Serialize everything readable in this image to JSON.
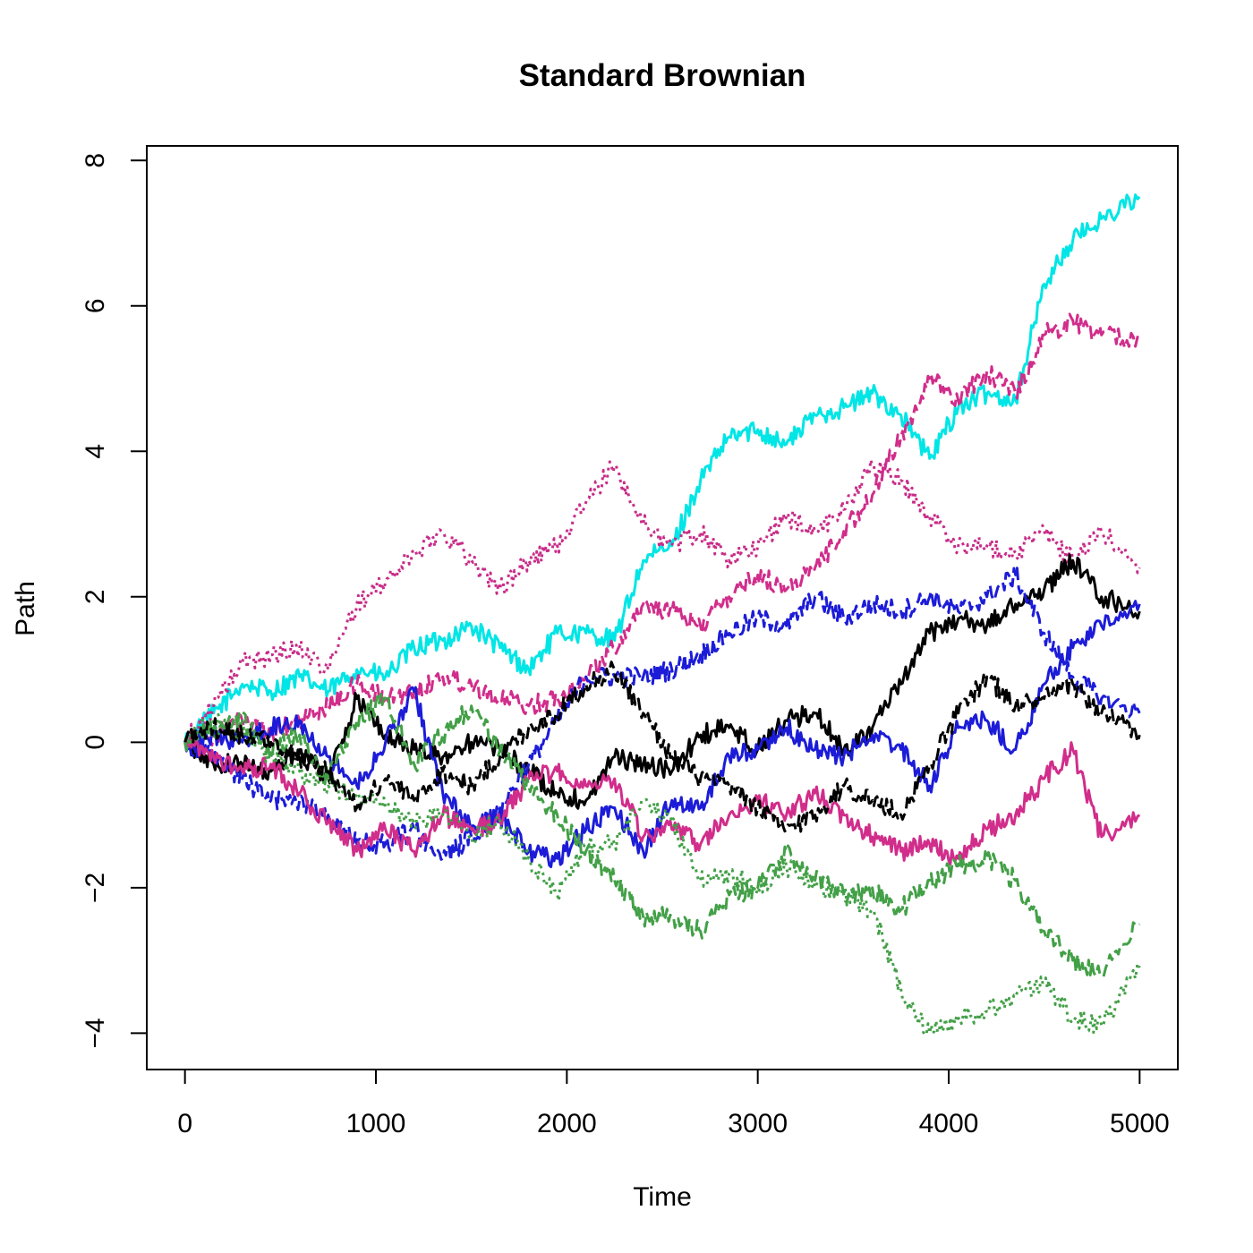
{
  "chart_data": {
    "type": "line",
    "title": "Standard Brownian",
    "xlabel": "Time",
    "ylabel": "Path",
    "xlim": [
      -200,
      5200
    ],
    "ylim": [
      -4.5,
      8.2
    ],
    "x_ticks": [
      0,
      1000,
      2000,
      3000,
      4000,
      5000
    ],
    "y_ticks": [
      -4,
      -2,
      0,
      2,
      4,
      6,
      8
    ],
    "x_tick_labels": [
      "0",
      "1000",
      "2000",
      "3000",
      "4000",
      "5000"
    ],
    "y_tick_labels": [
      "−4",
      "−2",
      "0",
      "2",
      "4",
      "6",
      "8"
    ],
    "grid": false,
    "legend": "none",
    "series": [
      {
        "color": "#00e5e5",
        "dash": "solid",
        "x": [
          0,
          150,
          300,
          450,
          600,
          750,
          900,
          1050,
          1200,
          1350,
          1500,
          1650,
          1800,
          1950,
          2100,
          2250,
          2400,
          2550,
          2700,
          2850,
          3000,
          3150,
          3300,
          3450,
          3600,
          3750,
          3900,
          4050,
          4200,
          4350,
          4500,
          4650,
          4800,
          5000
        ],
        "values": [
          0,
          0.4,
          0.8,
          0.7,
          0.9,
          0.7,
          1.0,
          0.9,
          1.3,
          1.4,
          1.6,
          1.3,
          1.0,
          1.5,
          1.5,
          1.4,
          2.5,
          2.7,
          3.6,
          4.2,
          4.3,
          4.1,
          4.5,
          4.6,
          4.8,
          4.5,
          3.9,
          4.6,
          4.8,
          4.7,
          6.3,
          6.9,
          7.2,
          7.5
        ]
      },
      {
        "color": "#d12d8b",
        "dash": "dashed",
        "x": [
          0,
          150,
          300,
          450,
          600,
          750,
          900,
          1050,
          1200,
          1350,
          1500,
          1650,
          1800,
          1950,
          2100,
          2250,
          2400,
          2550,
          2700,
          2850,
          3000,
          3150,
          3300,
          3450,
          3600,
          3750,
          3900,
          4050,
          4200,
          4350,
          4500,
          4650,
          4800,
          5000
        ],
        "values": [
          0,
          0.1,
          0.3,
          0.1,
          0.3,
          0.5,
          0.8,
          0.6,
          0.7,
          0.9,
          0.8,
          0.6,
          0.5,
          0.6,
          0.9,
          1.3,
          1.9,
          1.8,
          1.6,
          2.0,
          2.3,
          2.1,
          2.4,
          2.9,
          3.4,
          4.2,
          5.0,
          4.7,
          5.1,
          4.8,
          5.6,
          5.8,
          5.6,
          5.5
        ]
      },
      {
        "color": "#c72c88",
        "dash": "dotted",
        "x": [
          0,
          150,
          300,
          450,
          600,
          750,
          900,
          1050,
          1200,
          1350,
          1500,
          1650,
          1800,
          1950,
          2100,
          2250,
          2400,
          2550,
          2700,
          2850,
          3000,
          3150,
          3300,
          3450,
          3600,
          3750,
          3900,
          4050,
          4200,
          4350,
          4500,
          4650,
          4800,
          5000
        ],
        "values": [
          0,
          0.5,
          1.1,
          1.2,
          1.3,
          1.0,
          1.9,
          2.2,
          2.6,
          2.9,
          2.5,
          2.1,
          2.5,
          2.7,
          3.3,
          3.8,
          3.0,
          2.7,
          2.9,
          2.5,
          2.7,
          3.1,
          2.9,
          3.2,
          3.8,
          3.6,
          3.1,
          2.7,
          2.7,
          2.6,
          2.9,
          2.5,
          2.9,
          2.4
        ]
      },
      {
        "color": "#000000",
        "dash": "solid",
        "x": [
          0,
          150,
          300,
          450,
          600,
          750,
          900,
          1050,
          1200,
          1350,
          1500,
          1650,
          1800,
          1950,
          2100,
          2250,
          2400,
          2550,
          2700,
          2850,
          3000,
          3150,
          3300,
          3450,
          3600,
          3750,
          3900,
          4050,
          4200,
          4350,
          4500,
          4650,
          4800,
          5000
        ],
        "values": [
          0,
          -0.3,
          -0.3,
          -0.4,
          -0.1,
          -0.5,
          0.6,
          0.1,
          -0.1,
          -0.2,
          0.0,
          -0.1,
          -0.4,
          -0.7,
          -0.8,
          -0.2,
          -0.3,
          -0.4,
          0.1,
          0.2,
          -0.1,
          0.3,
          0.4,
          -0.1,
          0.2,
          0.8,
          1.5,
          1.7,
          1.6,
          1.9,
          2.1,
          2.5,
          2.0,
          1.8
        ]
      },
      {
        "color": "#1c1cd8",
        "dash": "dashed",
        "x": [
          0,
          150,
          300,
          450,
          600,
          750,
          900,
          1050,
          1200,
          1350,
          1500,
          1650,
          1800,
          1950,
          2100,
          2250,
          2400,
          2550,
          2700,
          2850,
          3000,
          3150,
          3300,
          3450,
          3600,
          3750,
          3900,
          4050,
          4200,
          4350,
          4500,
          4650,
          4800,
          5000
        ],
        "values": [
          0,
          -0.2,
          -0.5,
          -0.8,
          -0.8,
          -1.0,
          -1.4,
          -1.4,
          -1.2,
          -1.6,
          -1.3,
          -0.9,
          -0.3,
          0.3,
          0.9,
          0.9,
          0.9,
          1.0,
          1.2,
          1.5,
          1.7,
          1.6,
          2.0,
          1.7,
          1.9,
          1.8,
          2.0,
          1.8,
          2.0,
          2.3,
          1.5,
          0.9,
          0.6,
          0.4
        ]
      },
      {
        "color": "#1c1cd8",
        "dash": "solid",
        "x": [
          0,
          150,
          300,
          450,
          600,
          750,
          900,
          1050,
          1200,
          1350,
          1500,
          1650,
          1800,
          1950,
          2100,
          2250,
          2400,
          2550,
          2700,
          2850,
          3000,
          3150,
          3300,
          3450,
          3600,
          3750,
          3900,
          4050,
          4200,
          4350,
          4500,
          4650,
          4800,
          5000
        ],
        "values": [
          0,
          0.1,
          0.0,
          0.2,
          0.3,
          -0.2,
          -0.6,
          0.0,
          0.7,
          -0.7,
          -1.2,
          -1.0,
          -1.5,
          -1.6,
          -1.2,
          -0.9,
          -1.5,
          -0.8,
          -0.9,
          -0.2,
          -0.1,
          0.2,
          -0.1,
          -0.2,
          0.1,
          -0.1,
          -0.6,
          0.2,
          0.3,
          -0.1,
          0.8,
          1.3,
          1.6,
          1.9
        ]
      },
      {
        "color": "#d12d8b",
        "dash": "solid",
        "x": [
          0,
          150,
          300,
          450,
          600,
          750,
          900,
          1050,
          1200,
          1350,
          1500,
          1650,
          1800,
          1950,
          2100,
          2250,
          2400,
          2550,
          2700,
          2850,
          3000,
          3150,
          3300,
          3450,
          3600,
          3750,
          3900,
          4050,
          4200,
          4350,
          4500,
          4650,
          4800,
          5000
        ],
        "values": [
          0,
          -0.2,
          -0.4,
          -0.3,
          -0.7,
          -1.1,
          -1.5,
          -1.2,
          -1.5,
          -1.0,
          -1.2,
          -1.1,
          -0.5,
          -0.4,
          -0.6,
          -0.5,
          -1.3,
          -1.2,
          -1.4,
          -1.0,
          -0.8,
          -1.0,
          -0.7,
          -1.0,
          -1.3,
          -1.5,
          -1.4,
          -1.6,
          -1.2,
          -1.0,
          -0.5,
          -0.1,
          -1.3,
          -1.0
        ]
      },
      {
        "color": "#43a047",
        "dash": "dashed",
        "x": [
          0,
          150,
          300,
          450,
          600,
          750,
          900,
          1050,
          1200,
          1350,
          1500,
          1650,
          1800,
          1950,
          2100,
          2250,
          2400,
          2550,
          2700,
          2850,
          3000,
          3150,
          3300,
          3450,
          3600,
          3750,
          3900,
          4050,
          4200,
          4350,
          4500,
          4650,
          4800,
          5000
        ],
        "values": [
          0,
          0.2,
          0.3,
          -0.1,
          0.1,
          -0.5,
          0.3,
          0.6,
          -0.3,
          0.1,
          0.5,
          -0.1,
          -0.6,
          -1.0,
          -1.5,
          -1.9,
          -2.4,
          -2.4,
          -2.6,
          -2.1,
          -2.0,
          -1.5,
          -1.9,
          -2.1,
          -2.0,
          -2.3,
          -1.9,
          -1.7,
          -1.6,
          -1.9,
          -2.6,
          -3.0,
          -3.2,
          -2.5
        ]
      },
      {
        "color": "#43a047",
        "dash": "dotted",
        "x": [
          0,
          150,
          300,
          450,
          600,
          750,
          900,
          1050,
          1200,
          1350,
          1500,
          1650,
          1800,
          1950,
          2100,
          2250,
          2400,
          2550,
          2700,
          2850,
          3000,
          3150,
          3300,
          3450,
          3600,
          3750,
          3900,
          4050,
          4200,
          4350,
          4500,
          4650,
          4800,
          5000
        ],
        "values": [
          0,
          0.3,
          0.1,
          -0.2,
          -0.4,
          -0.6,
          -0.7,
          -0.9,
          -1.1,
          -1.0,
          -1.3,
          -1.1,
          -1.6,
          -2.1,
          -1.4,
          -1.4,
          -0.8,
          -1.1,
          -1.9,
          -1.8,
          -2.0,
          -1.7,
          -2.0,
          -2.1,
          -2.3,
          -3.4,
          -4.0,
          -3.8,
          -3.7,
          -3.5,
          -3.3,
          -3.8,
          -3.9,
          -3.1
        ]
      },
      {
        "color": "#000000",
        "dash": "dashed",
        "x": [
          0,
          150,
          300,
          450,
          600,
          750,
          900,
          1050,
          1200,
          1350,
          1500,
          1650,
          1800,
          1950,
          2100,
          2250,
          2400,
          2550,
          2700,
          2850,
          3000,
          3150,
          3300,
          3450,
          3600,
          3750,
          3900,
          4050,
          4200,
          4350,
          4500,
          4650,
          4800,
          5000
        ],
        "values": [
          0,
          0.2,
          0.1,
          0.0,
          -0.2,
          -0.4,
          -0.9,
          -0.5,
          -0.8,
          -0.4,
          -0.6,
          -0.2,
          0.2,
          0.4,
          0.8,
          1.0,
          0.4,
          -0.2,
          -0.5,
          -0.6,
          -0.9,
          -1.2,
          -1.0,
          -0.6,
          -0.8,
          -1.0,
          -0.3,
          0.4,
          0.9,
          0.5,
          0.6,
          0.8,
          0.4,
          0.1
        ]
      }
    ]
  }
}
